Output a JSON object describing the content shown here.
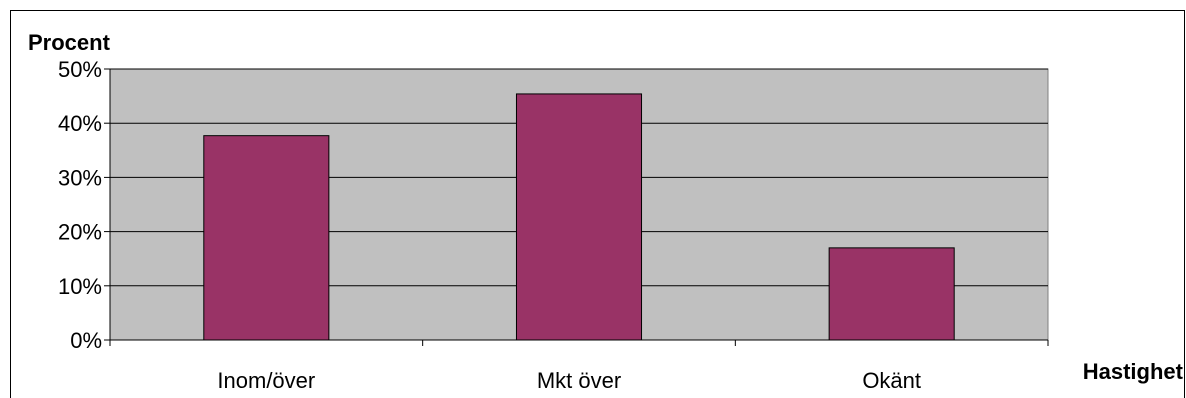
{
  "chart_data": {
    "type": "bar",
    "categories": [
      "Inom/över",
      "Mkt över",
      "Okänt"
    ],
    "values": [
      37.7,
      45.4,
      17.0
    ],
    "ylabel": "Procent",
    "xlabel": "Hastighet",
    "ylim": [
      0,
      50
    ],
    "yticks": [
      "0%",
      "10%",
      "20%",
      "30%",
      "40%",
      "50%"
    ],
    "grid": true,
    "legend": "none"
  },
  "colors": {
    "bar_fill": "#993366",
    "plot_background": "#c0c0c0",
    "gridline": "#000000"
  }
}
